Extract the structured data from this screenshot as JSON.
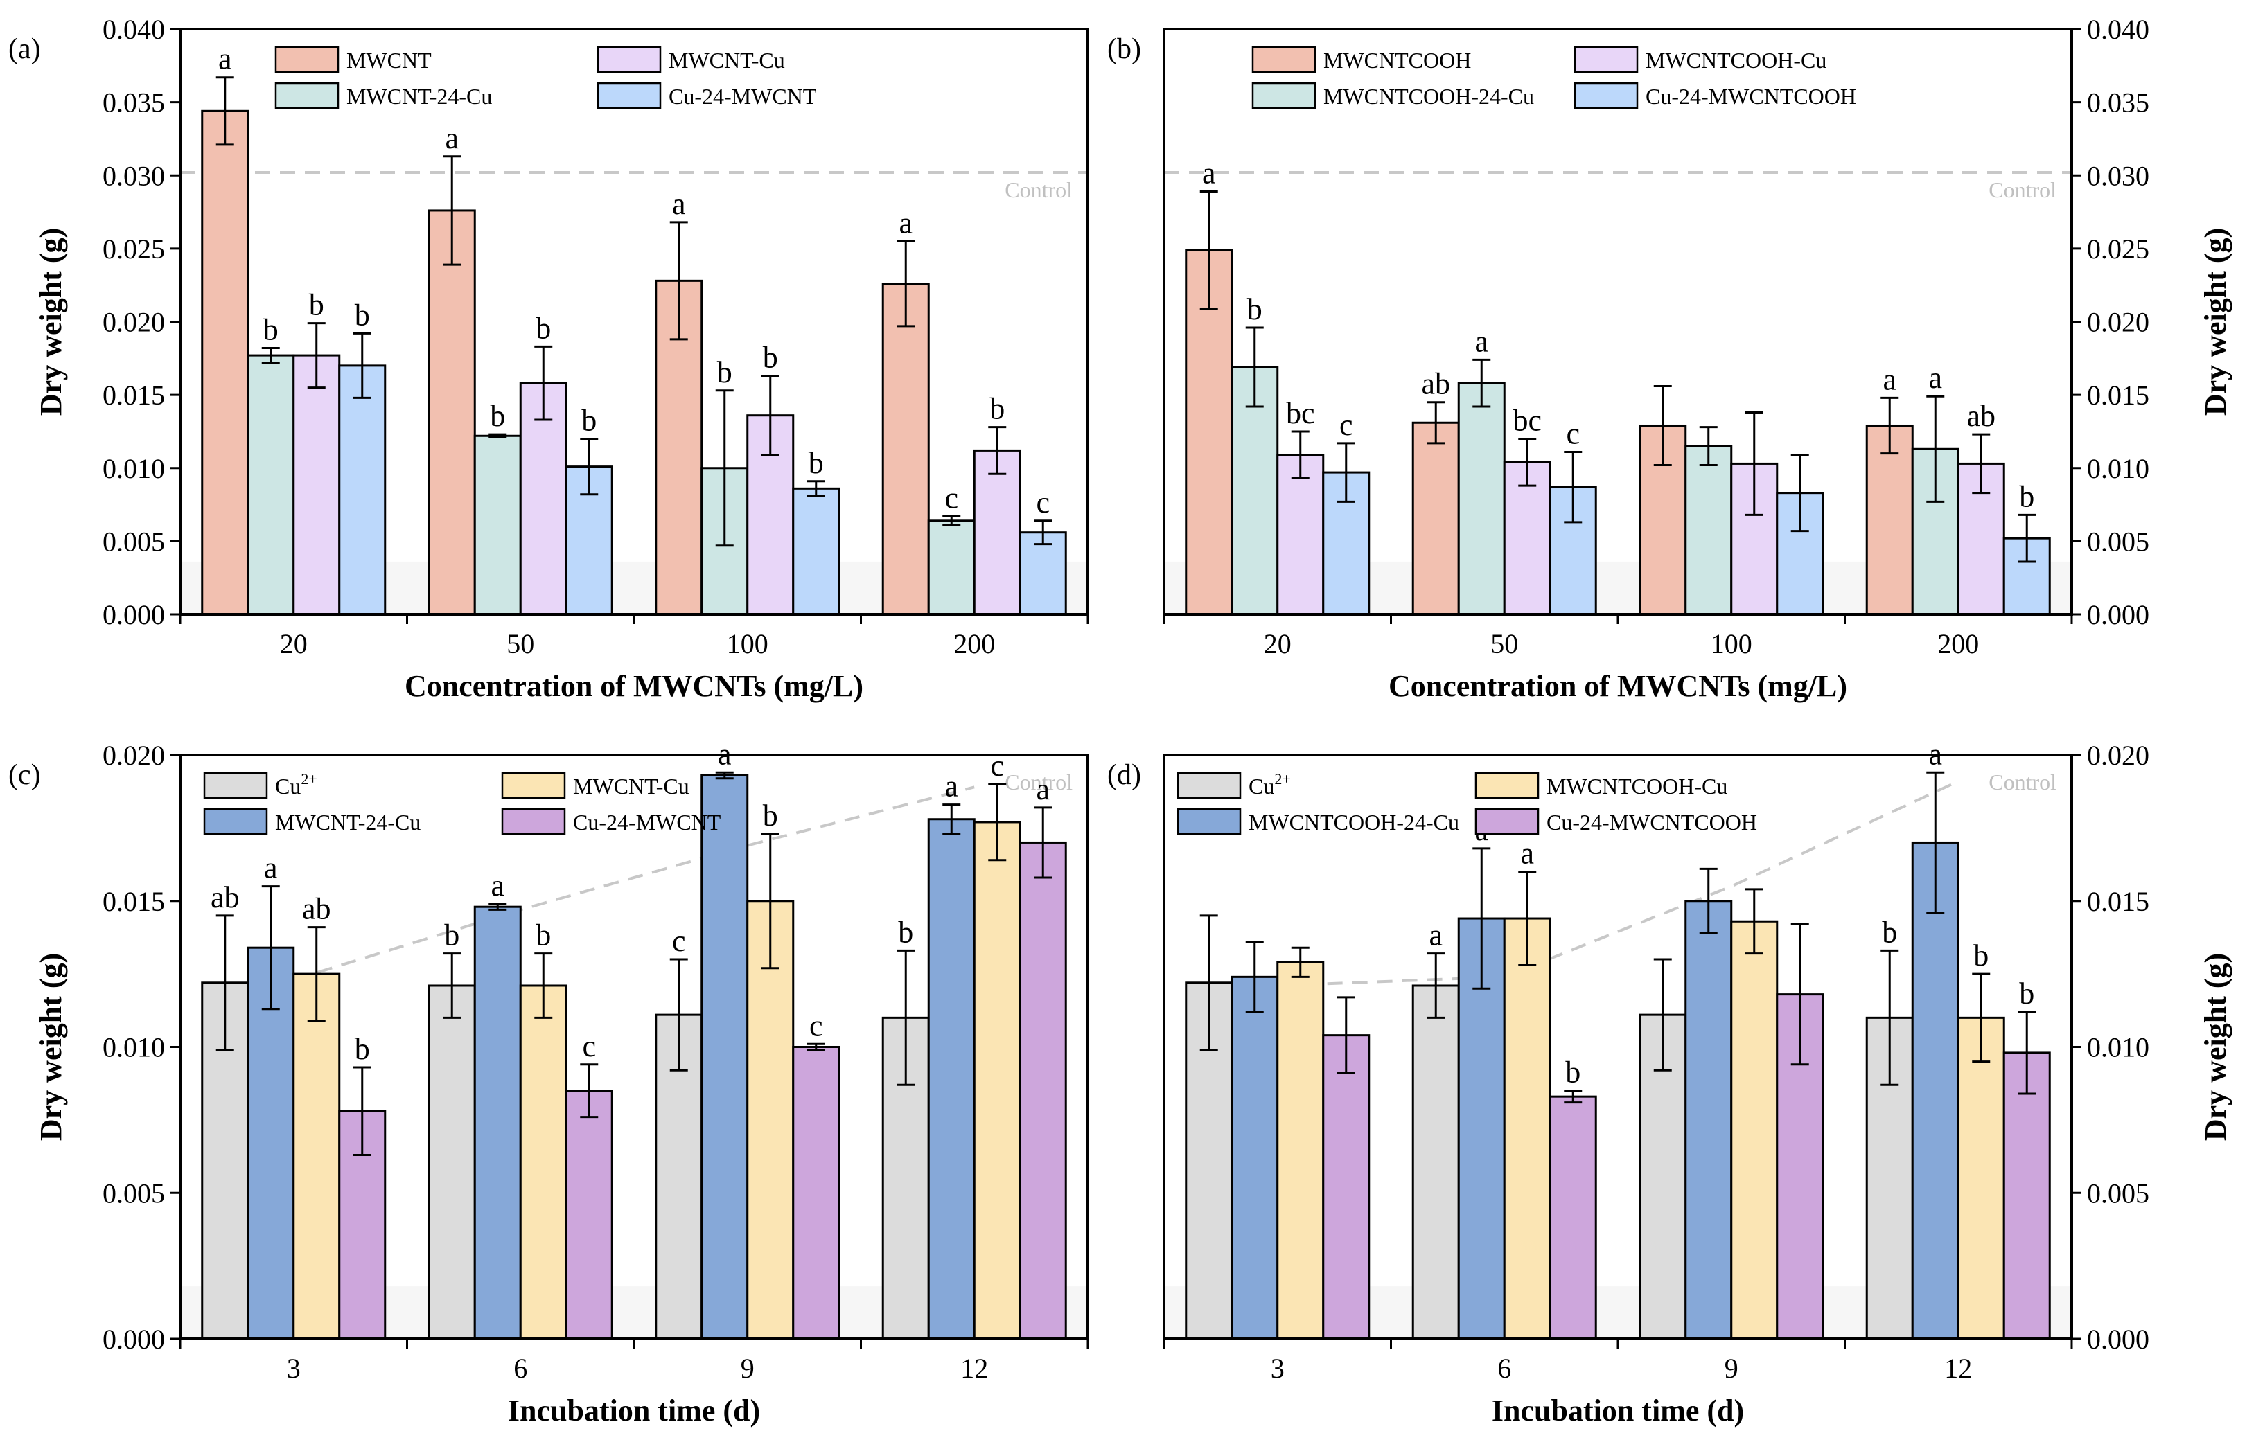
{
  "colors": {
    "MWCNT": "#f2c0b0",
    "MWCNT_24_Cu": "#cde6e4",
    "MWCNT_Cu": "#e8d6f8",
    "Cu_24_MWCNT": "#bcd8fb",
    "Cu2": "#dcdcdc",
    "blue_dark": "#86a8d8",
    "yellow": "#fbe5b4",
    "purple": "#cda6dc",
    "control_line": "#c8c8c8",
    "control_text": "#c0c0c0"
  },
  "chart_data": [
    {
      "panel": "(a)",
      "type": "bar",
      "title": "",
      "xlabel": "Concentration of MWCNTs (mg/L)",
      "ylabel": "Dry weight (g)",
      "ylabel_side": "left",
      "ylim": [
        0,
        0.04
      ],
      "yticks": [
        "0.000",
        "0.005",
        "0.010",
        "0.015",
        "0.020",
        "0.025",
        "0.030",
        "0.035",
        "0.040"
      ],
      "categories": [
        "20",
        "50",
        "100",
        "200"
      ],
      "control": {
        "label": "Control",
        "values": [
          0.0302,
          0.0302,
          0.0302,
          0.0302
        ]
      },
      "legend": {
        "placement": "top-left",
        "columns": 2
      },
      "series": [
        {
          "name": "MWCNT",
          "color": "#f2c0b0",
          "values": [
            0.0344,
            0.0276,
            0.0228,
            0.0226
          ],
          "errors": [
            0.0023,
            0.0037,
            0.004,
            0.0029
          ],
          "letters": [
            "a",
            "a",
            "a",
            "a"
          ]
        },
        {
          "name": "MWCNT-24-Cu",
          "color": "#cde6e4",
          "values": [
            0.0177,
            0.0122,
            0.01,
            0.0064
          ],
          "errors": [
            0.0005,
            0.0001,
            0.0053,
            0.0003
          ],
          "letters": [
            "b",
            "b",
            "b",
            "c"
          ]
        },
        {
          "name": "MWCNT-Cu",
          "color": "#e8d6f8",
          "values": [
            0.0177,
            0.0158,
            0.0136,
            0.0112
          ],
          "errors": [
            0.0022,
            0.0025,
            0.0027,
            0.0016
          ],
          "letters": [
            "b",
            "b",
            "b",
            "b"
          ]
        },
        {
          "name": "Cu-24-MWCNT",
          "color": "#bcd8fb",
          "values": [
            0.017,
            0.0101,
            0.0086,
            0.0056
          ],
          "errors": [
            0.0022,
            0.0019,
            0.0005,
            0.0008
          ],
          "letters": [
            "b",
            "b",
            "b",
            "c"
          ]
        }
      ]
    },
    {
      "panel": "(b)",
      "type": "bar",
      "title": "",
      "xlabel": "Concentration of MWCNTs (mg/L)",
      "ylabel": "Dry weight (g)",
      "ylabel_side": "right",
      "ylim": [
        0,
        0.04
      ],
      "yticks": [
        "0.000",
        "0.005",
        "0.010",
        "0.015",
        "0.020",
        "0.025",
        "0.030",
        "0.035",
        "0.040"
      ],
      "categories": [
        "20",
        "50",
        "100",
        "200"
      ],
      "control": {
        "label": "Control",
        "values": [
          0.0302,
          0.0302,
          0.0302,
          0.0302
        ]
      },
      "legend": {
        "placement": "top-left",
        "columns": 2
      },
      "series": [
        {
          "name": "MWCNTCOOH",
          "color": "#f2c0b0",
          "values": [
            0.0249,
            0.0131,
            0.0129,
            0.0129
          ],
          "errors": [
            0.004,
            0.0014,
            0.0027,
            0.0019
          ],
          "letters": [
            "a",
            "ab",
            "",
            ""
          ]
        },
        {
          "name": "MWCNTCOOH-24-Cu",
          "color": "#cde6e4",
          "values": [
            0.0169,
            0.0158,
            0.0115,
            0.0113
          ],
          "errors": [
            0.0027,
            0.0016,
            0.0013,
            0.0036
          ],
          "letters": [
            "b",
            "a",
            "",
            ""
          ]
        },
        {
          "name": "MWCNTCOOH-Cu",
          "color": "#e8d6f8",
          "values": [
            0.0109,
            0.0104,
            0.0103,
            0.0103
          ],
          "errors": [
            0.0016,
            0.0016,
            0.0035,
            0.002
          ],
          "letters": [
            "bc",
            "bc",
            "",
            "ab"
          ]
        },
        {
          "name": "Cu-24-MWCNTCOOH",
          "color": "#bcd8fb",
          "values": [
            0.0097,
            0.0087,
            0.0083,
            0.0052
          ],
          "errors": [
            0.002,
            0.0024,
            0.0026,
            0.0016
          ],
          "letters": [
            "c",
            "c",
            "",
            "b"
          ]
        }
      ],
      "extra_letters": [
        {
          "group": 3,
          "series": 0,
          "text": "a"
        },
        {
          "group": 3,
          "series": 1,
          "text": "a"
        }
      ]
    },
    {
      "panel": "(c)",
      "type": "bar",
      "title": "",
      "xlabel": "Incubation time (d)",
      "ylabel": "Dry weight (g)",
      "ylabel_side": "left",
      "ylim": [
        0,
        0.02
      ],
      "yticks": [
        "0.000",
        "0.005",
        "0.010",
        "0.015",
        "0.020"
      ],
      "categories": [
        "3",
        "6",
        "9",
        "12"
      ],
      "control": {
        "label": "Control",
        "values": [
          0.0123,
          0.0147,
          0.0169,
          0.0189
        ]
      },
      "legend": {
        "placement": "top-left",
        "columns": 2
      },
      "series": [
        {
          "name": "Cu2+",
          "color": "#dcdcdc",
          "values": [
            0.0122,
            0.0121,
            0.0111,
            0.011
          ],
          "errors": [
            0.0023,
            0.0011,
            0.0019,
            0.0023
          ],
          "letters": [
            "ab",
            "b",
            "c",
            "b"
          ]
        },
        {
          "name": "MWCNT-24-Cu",
          "color": "#86a8d8",
          "values": [
            0.0134,
            0.0148,
            0.0193,
            0.0178
          ],
          "errors": [
            0.0021,
            0.0001,
            0.0001,
            0.0005
          ],
          "letters": [
            "a",
            "a",
            "a",
            "a"
          ]
        },
        {
          "name": "MWCNT-Cu",
          "color": "#fbe5b4",
          "values": [
            0.0125,
            0.0121,
            0.015,
            0.0177
          ],
          "errors": [
            0.0016,
            0.0011,
            0.0023,
            0.0013
          ],
          "letters": [
            "ab",
            "b",
            "b",
            "c"
          ]
        },
        {
          "name": "Cu-24-MWCNT",
          "color": "#cda6dc",
          "values": [
            0.0078,
            0.0085,
            0.01,
            0.017
          ],
          "errors": [
            0.0015,
            0.0009,
            0.0001,
            0.0012
          ],
          "letters": [
            "b",
            "c",
            "c",
            "a"
          ]
        }
      ]
    },
    {
      "panel": "(d)",
      "type": "bar",
      "title": "",
      "xlabel": "Incubation time (d)",
      "ylabel": "Dry weight (g)",
      "ylabel_side": "right",
      "ylim": [
        0,
        0.02
      ],
      "yticks": [
        "0.000",
        "0.005",
        "0.010",
        "0.015",
        "0.020"
      ],
      "categories": [
        "3",
        "6",
        "9",
        "12"
      ],
      "control": {
        "label": "Control",
        "values": [
          0.0121,
          0.0124,
          0.0155,
          0.0191
        ]
      },
      "legend": {
        "placement": "top-left",
        "columns": 2
      },
      "series": [
        {
          "name": "Cu2+",
          "color": "#dcdcdc",
          "values": [
            0.0122,
            0.0121,
            0.0111,
            0.011
          ],
          "errors": [
            0.0023,
            0.0011,
            0.0019,
            0.0023
          ],
          "letters": [
            "",
            "a",
            "",
            "b"
          ]
        },
        {
          "name": "MWCNTCOOH-24-Cu",
          "color": "#86a8d8",
          "values": [
            0.0124,
            0.0144,
            0.015,
            0.017
          ],
          "errors": [
            0.0012,
            0.0024,
            0.0011,
            0.0024
          ],
          "letters": [
            "",
            "a",
            "",
            "a"
          ]
        },
        {
          "name": "MWCNTCOOH-Cu",
          "color": "#fbe5b4",
          "values": [
            0.0129,
            0.0144,
            0.0143,
            0.011
          ],
          "errors": [
            0.0005,
            0.0016,
            0.0011,
            0.0015
          ],
          "letters": [
            "",
            "a",
            "",
            "b"
          ]
        },
        {
          "name": "Cu-24-MWCNTCOOH",
          "color": "#cda6dc",
          "values": [
            0.0104,
            0.0083,
            0.0118,
            0.0098
          ],
          "errors": [
            0.0013,
            0.0002,
            0.0024,
            0.0014
          ],
          "letters": [
            "",
            "b",
            "",
            "b"
          ]
        }
      ]
    }
  ]
}
